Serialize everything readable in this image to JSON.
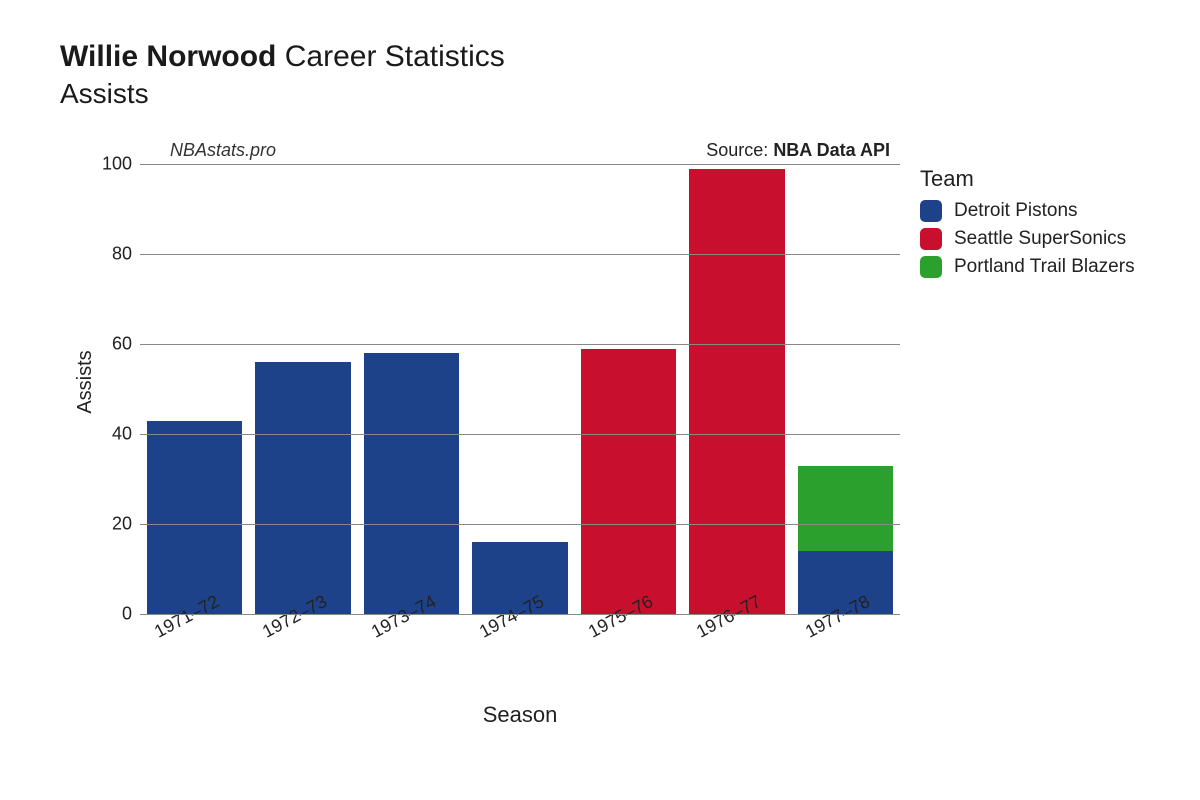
{
  "title": {
    "player_name": "Willie Norwood",
    "suffix": "Career Statistics",
    "metric": "Assists"
  },
  "attribution": {
    "site": "NBAstats.pro",
    "source_prefix": "Source: ",
    "source_name": "NBA Data API"
  },
  "chart": {
    "type": "bar_stacked",
    "xlabel": "Season",
    "ylabel": "Assists",
    "ylim": [
      0,
      100
    ],
    "ytick_step": 20,
    "yticks": [
      0,
      20,
      40,
      60,
      80,
      100
    ],
    "grid_color": "#888888",
    "background_color": "#ffffff",
    "bar_gap_ratio": 0.12,
    "label_fontsize": 18,
    "axis_title_fontsize": 20,
    "x_tick_rotation_deg": -28,
    "categories": [
      "1971–72",
      "1972–73",
      "1973–74",
      "1974–75",
      "1975–76",
      "1976–77",
      "1977–78"
    ],
    "series": [
      {
        "id": "detroit",
        "label": "Detroit Pistons",
        "color": "#1d428a",
        "values": [
          43,
          56,
          58,
          16,
          0,
          0,
          14
        ]
      },
      {
        "id": "seattle",
        "label": "Seattle SuperSonics",
        "color": "#c8102e",
        "values": [
          0,
          0,
          0,
          0,
          59,
          99,
          0
        ]
      },
      {
        "id": "portland",
        "label": "Portland Trail Blazers",
        "color": "#2ca02c",
        "values": [
          0,
          0,
          0,
          0,
          0,
          0,
          19
        ]
      }
    ]
  },
  "legend": {
    "title": "Team"
  }
}
